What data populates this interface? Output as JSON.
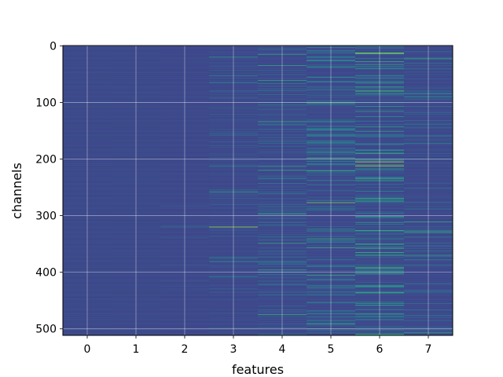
{
  "chart_data": {
    "type": "heatmap",
    "title": "",
    "xlabel": "features",
    "ylabel": "channels",
    "x_tick_labels": [
      "0",
      "1",
      "2",
      "3",
      "4",
      "5",
      "6",
      "7"
    ],
    "y_tick_labels": [
      "0",
      "100",
      "200",
      "300",
      "400",
      "500"
    ],
    "xlim": [
      -0.5,
      7.5
    ],
    "ylim": [
      511.5,
      -0.5
    ],
    "rows": 512,
    "columns": 8,
    "grid": true,
    "colormap": "viridis",
    "colors": {
      "low": "#3b4a8a",
      "base_column_0": "#3d4b8b",
      "base_column_1": "#3c4a8a",
      "high_teal": "#21a38a",
      "peak_yellow": "#d8e23a"
    },
    "column_activity": [
      0.02,
      0.03,
      0.25,
      0.45,
      0.55,
      0.7,
      0.8,
      0.55
    ],
    "highlights": [
      {
        "feature": 6,
        "channel": 13,
        "level": 0.95
      },
      {
        "feature": 6,
        "channel": 205,
        "level": 1.0
      },
      {
        "feature": 6,
        "channel": 212,
        "level": 0.98
      },
      {
        "feature": 6,
        "channel": 80,
        "level": 0.85
      },
      {
        "feature": 6,
        "channel": 270,
        "level": 0.8
      },
      {
        "feature": 5,
        "channel": 277,
        "level": 0.9
      },
      {
        "feature": 5,
        "channel": 405,
        "level": 0.8
      },
      {
        "feature": 5,
        "channel": 492,
        "level": 0.75
      },
      {
        "feature": 3,
        "channel": 320,
        "level": 0.95
      },
      {
        "feature": 3,
        "channel": 20,
        "level": 0.7
      },
      {
        "feature": 3,
        "channel": 258,
        "level": 0.75
      },
      {
        "feature": 4,
        "channel": 220,
        "level": 0.75
      },
      {
        "feature": 4,
        "channel": 475,
        "level": 0.8
      },
      {
        "feature": 4,
        "channel": 67,
        "level": 0.6
      },
      {
        "feature": 7,
        "channel": 85,
        "level": 0.7
      },
      {
        "feature": 7,
        "channel": 378,
        "level": 0.65
      },
      {
        "feature": 2,
        "channel": 320,
        "level": 0.5
      }
    ]
  }
}
